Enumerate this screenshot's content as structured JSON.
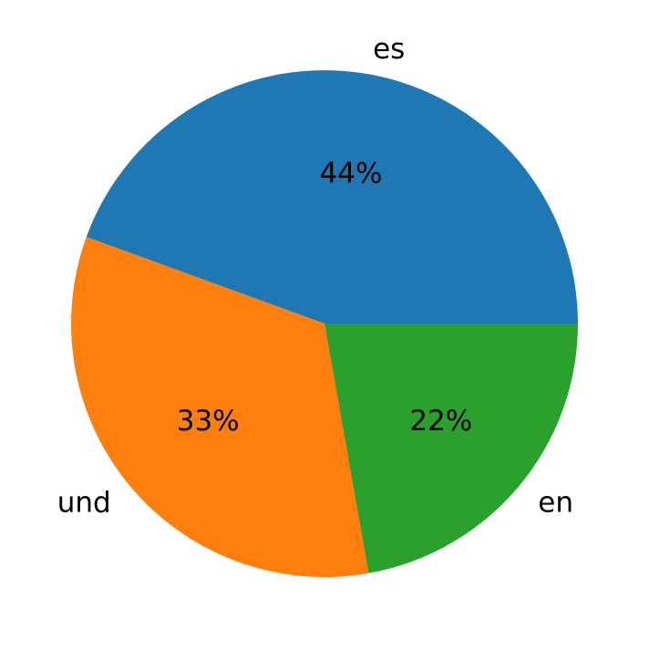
{
  "chart_data": {
    "type": "pie",
    "title": "",
    "slices": [
      {
        "label": "es",
        "pct_label": "44%",
        "value": 44.4,
        "color": "#1f77b4"
      },
      {
        "label": "und",
        "pct_label": "33%",
        "value": 33.3,
        "color": "#ff7f0e"
      },
      {
        "label": "en",
        "pct_label": "22%",
        "value": 22.2,
        "color": "#2ca02c"
      }
    ],
    "start_angle_deg": 0,
    "direction": "counterclockwise",
    "label_distance": 1.1,
    "pct_distance": 0.6,
    "legend": "none",
    "background_color": "#ffffff",
    "text_color": "#000000"
  }
}
